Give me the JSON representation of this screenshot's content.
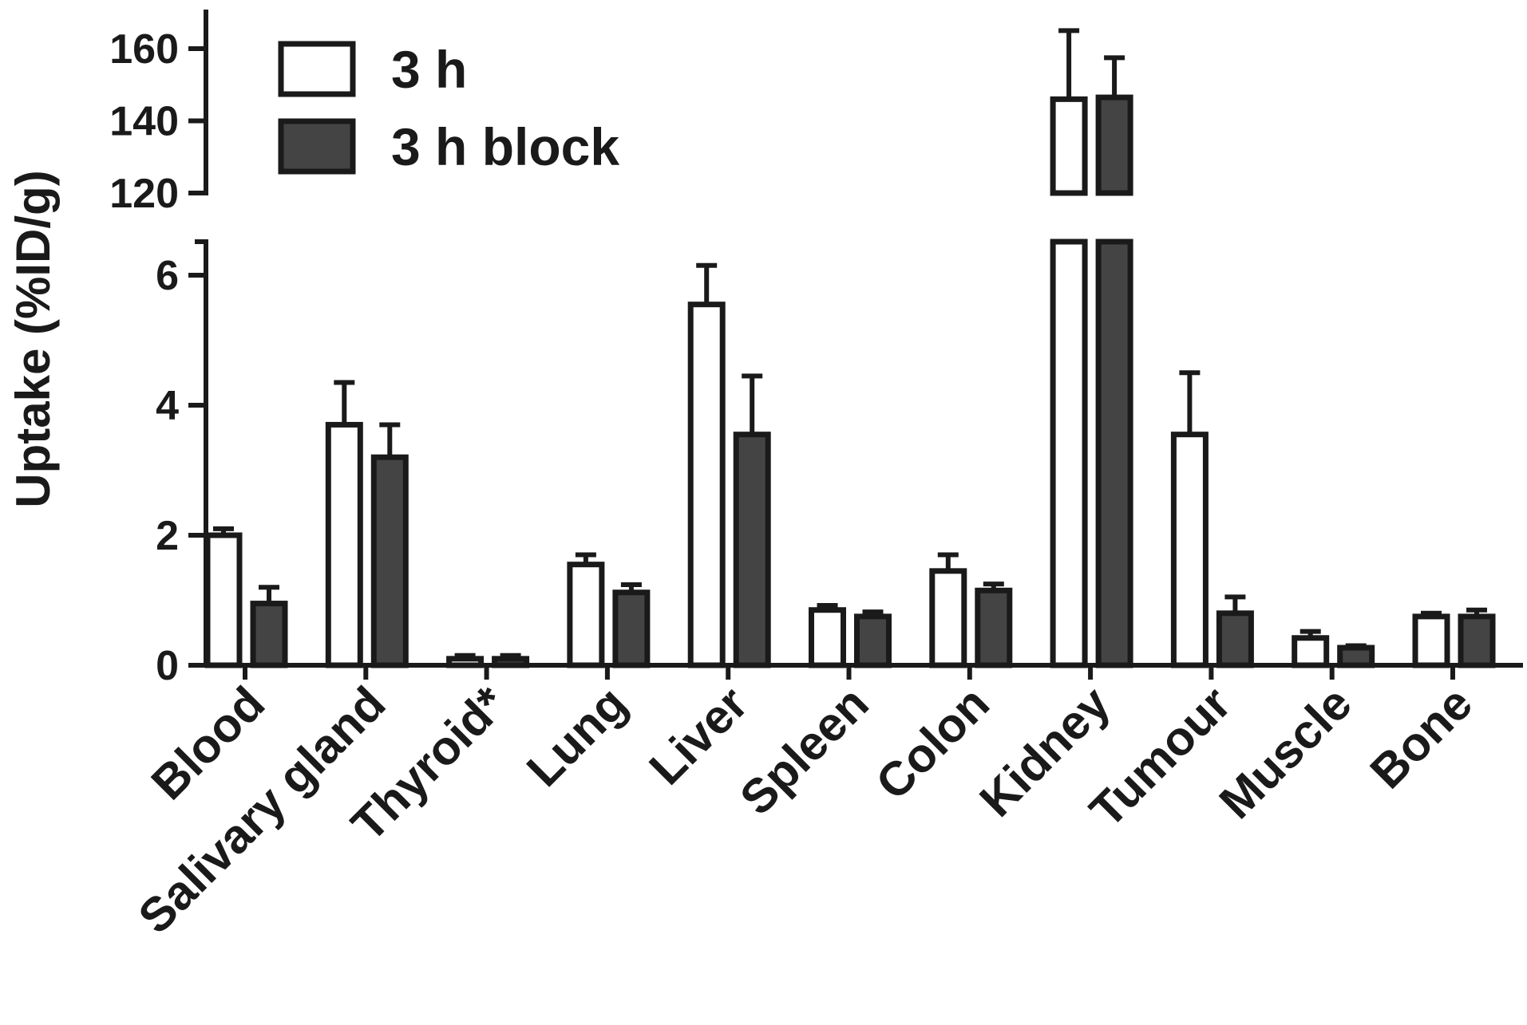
{
  "chart_data": {
    "type": "bar",
    "ylabel": "Uptake (%ID/g)",
    "broken_axis": true,
    "lower_ylim": [
      0,
      6.5
    ],
    "upper_ylim": [
      120,
      170
    ],
    "lower_yticks": [
      "0",
      "2",
      "4",
      "6"
    ],
    "upper_yticks": [
      "120",
      "140",
      "160"
    ],
    "categories": [
      "Blood",
      "Salivary gland",
      "Thyroid*",
      "Lung",
      "Liver",
      "Spleen",
      "Colon",
      "Kidney",
      "Tumour",
      "Muscle",
      "Bone"
    ],
    "series": [
      {
        "name": "3 h",
        "color": "#ffffff",
        "values": [
          2.0,
          3.7,
          0.1,
          1.55,
          5.55,
          0.85,
          1.45,
          146,
          3.55,
          0.42,
          0.75
        ],
        "errors": [
          0.1,
          0.65,
          0.05,
          0.15,
          0.6,
          0.07,
          0.25,
          19,
          0.95,
          0.1,
          0.05
        ]
      },
      {
        "name": "3 h block",
        "color": "#444444",
        "values": [
          0.95,
          3.2,
          0.1,
          1.12,
          3.55,
          0.75,
          1.15,
          146.5,
          0.8,
          0.27,
          0.75
        ],
        "errors": [
          0.25,
          0.5,
          0.05,
          0.12,
          0.9,
          0.07,
          0.1,
          11,
          0.25,
          0.03,
          0.1
        ]
      }
    ],
    "legend_position": "top-left"
  }
}
